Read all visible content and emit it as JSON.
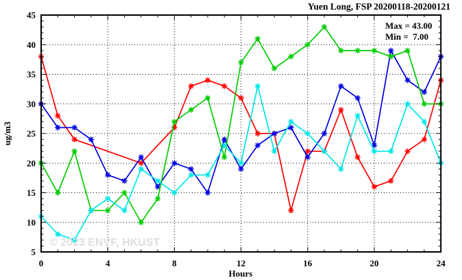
{
  "title": "Yuen Long, FSP 20200118-20200121",
  "annotation": {
    "max_label": "Max = 43.00",
    "min_label": "Min =  7.00"
  },
  "watermark": "© 2023 ENVF, HKUST",
  "chart_data": {
    "type": "line",
    "title": "Yuen Long, FSP 20200118-20200121",
    "xlabel": "Hours",
    "ylabel": "ug/m3",
    "xlim": [
      0,
      24
    ],
    "ylim": [
      5,
      45
    ],
    "xticks": [
      0,
      4,
      8,
      12,
      16,
      20,
      24
    ],
    "yticks": [
      5,
      10,
      15,
      20,
      25,
      30,
      35,
      40,
      45
    ],
    "grid": true,
    "legend": "none",
    "marker": "asterisk",
    "stats": {
      "max": 43.0,
      "min": 7.0
    },
    "x": [
      0,
      1,
      2,
      3,
      4,
      5,
      6,
      7,
      8,
      9,
      10,
      11,
      12,
      13,
      14,
      15,
      16,
      17,
      18,
      19,
      20,
      21,
      22,
      23,
      24
    ],
    "series": [
      {
        "name": "day-1-red",
        "color": "#ff0000",
        "values": [
          38,
          28,
          24,
          null,
          null,
          null,
          20,
          null,
          26,
          33,
          34,
          33,
          31,
          25,
          25,
          12,
          22,
          22,
          29,
          21,
          16,
          17,
          22,
          24,
          34
        ]
      },
      {
        "name": "day-2-blue",
        "color": "#0000e0",
        "values": [
          30,
          26,
          26,
          24,
          18,
          17,
          21,
          16,
          20,
          19,
          15,
          24,
          19,
          23,
          25,
          26,
          21,
          25,
          33,
          31,
          23,
          39,
          34,
          32,
          38
        ]
      },
      {
        "name": "day-3-green",
        "color": "#00cc00",
        "values": [
          20,
          15,
          22,
          12,
          12,
          15,
          10,
          14,
          27,
          29,
          31,
          21,
          37,
          41,
          36,
          38,
          40,
          43,
          39,
          39,
          39,
          38,
          39,
          30,
          30
        ]
      },
      {
        "name": "day-4-cyan",
        "color": "#00e5e5",
        "values": [
          11,
          8,
          7,
          12,
          14,
          12,
          19,
          17,
          15,
          18,
          18,
          23,
          20,
          33,
          22,
          27,
          25,
          22,
          19,
          28,
          22,
          22,
          30,
          27,
          20
        ]
      }
    ]
  }
}
